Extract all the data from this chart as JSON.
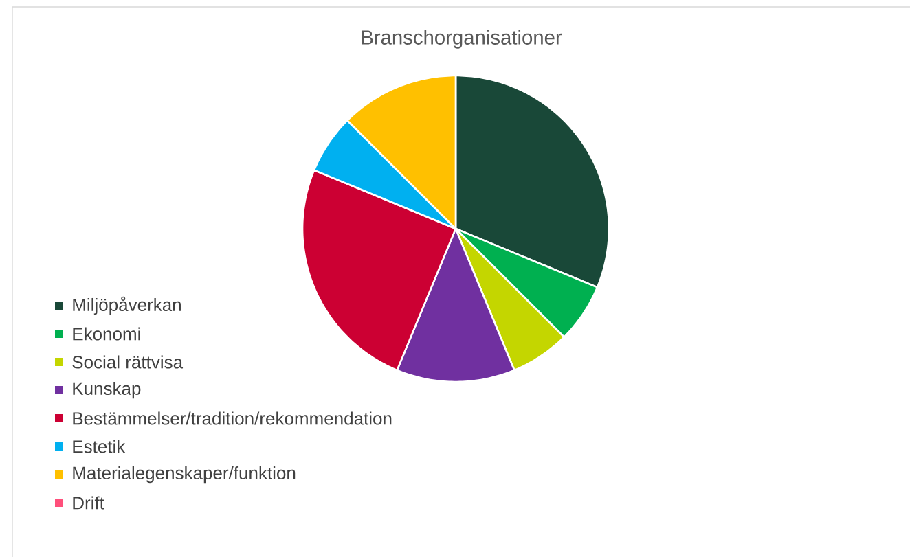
{
  "chart_data": {
    "type": "pie",
    "title": "Branschorganisationer",
    "categories": [
      "Miljöpåverkan",
      "Ekonomi",
      "Social rättvisa",
      "Kunskap",
      "Bestämmelser/tradition/rekommendation",
      "Estetik",
      "Materialegenskaper/funktion",
      "Drift"
    ],
    "values": [
      31.25,
      6.25,
      6.25,
      12.5,
      25,
      6.25,
      12.5,
      0
    ],
    "colors": [
      "#194838",
      "#00b050",
      "#c4d600",
      "#7030a0",
      "#cc0033",
      "#00b0f0",
      "#ffc000",
      "#ff4f7b"
    ],
    "legend": "left"
  }
}
